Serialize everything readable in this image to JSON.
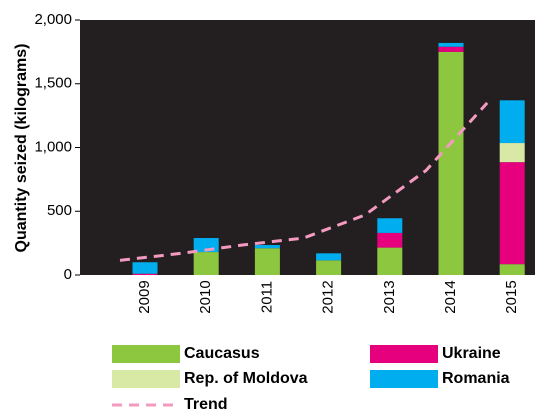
{
  "chart_data": {
    "type": "stacked_bar",
    "ylabel": "Quantity seized (kilograms)",
    "categories": [
      "2009",
      "2010",
      "2011",
      "2012",
      "2013",
      "2014",
      "2015"
    ],
    "series": [
      {
        "name": "Caucasus",
        "color": "#8dc63f",
        "values": [
          0,
          180,
          210,
          115,
          215,
          1750,
          85
        ]
      },
      {
        "name": "Ukraine",
        "color": "#e6007e",
        "values": [
          10,
          0,
          0,
          0,
          115,
          40,
          800
        ]
      },
      {
        "name": "Rep. of Moldova",
        "color": "#d7e9a4",
        "values": [
          0,
          0,
          0,
          0,
          0,
          0,
          150
        ]
      },
      {
        "name": "Romania",
        "color": "#00aeef",
        "values": [
          90,
          110,
          25,
          55,
          115,
          30,
          335
        ]
      }
    ],
    "trend": {
      "name": "Trend",
      "color": "#f49ac1",
      "values": [
        115,
        170,
        235,
        290,
        470,
        820,
        1350
      ]
    },
    "ylim": [
      0,
      2000
    ],
    "yticks": [
      0,
      500,
      {
        "value": 1000,
        "label": "1,000"
      },
      {
        "value": 1500,
        "label": "1,500"
      },
      {
        "value": 2000,
        "label": "2,000"
      }
    ],
    "background": "#231f20"
  }
}
